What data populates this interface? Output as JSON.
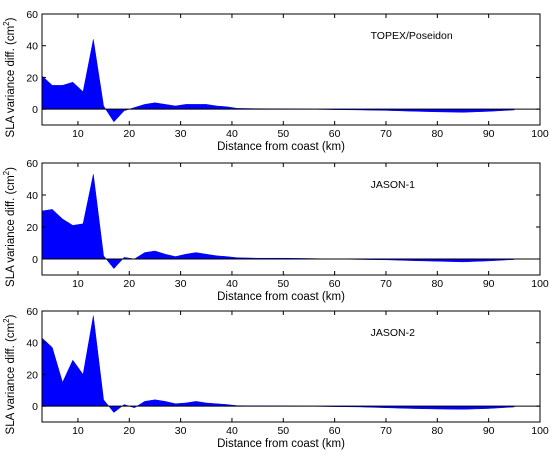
{
  "figure": {
    "fill_color": "#0000ff",
    "ylabel_base": "SLA variance diff. (cm",
    "ylabel_sup": "2",
    "ylabel_tail": ")"
  },
  "chart_data": [
    {
      "type": "area",
      "title": "TOPEX/Poseidon",
      "xlabel": "Distance from coast (km)",
      "ylabel": "SLA variance diff. (cm²)",
      "xlim": [
        3,
        100
      ],
      "ylim": [
        -10,
        60
      ],
      "xticks": [
        10,
        20,
        30,
        40,
        50,
        60,
        70,
        80,
        90,
        100
      ],
      "yticks": [
        0,
        20,
        40,
        60
      ],
      "grid": false,
      "x": [
        3,
        5,
        7,
        9,
        11,
        13,
        15,
        17,
        19,
        21,
        23,
        25,
        27,
        29,
        31,
        33,
        35,
        37,
        39,
        41,
        45,
        50,
        55,
        60,
        65,
        70,
        75,
        80,
        85,
        90,
        95
      ],
      "y": [
        21,
        15,
        15,
        17,
        11,
        44,
        2,
        -8,
        -1,
        1,
        3,
        4,
        3,
        2,
        3,
        3,
        3,
        2,
        1.5,
        0.5,
        0.3,
        0.2,
        0,
        -0.3,
        -0.5,
        -0.8,
        -1.3,
        -1.7,
        -2,
        -1.4,
        -0.5
      ]
    },
    {
      "type": "area",
      "title": "JASON-1",
      "xlabel": "Distance from coast (km)",
      "ylabel": "SLA variance diff. (cm²)",
      "xlim": [
        3,
        100
      ],
      "ylim": [
        -10,
        60
      ],
      "xticks": [
        10,
        20,
        30,
        40,
        50,
        60,
        70,
        80,
        90,
        100
      ],
      "yticks": [
        0,
        20,
        40,
        60
      ],
      "grid": false,
      "x": [
        3,
        5,
        7,
        9,
        11,
        13,
        15,
        17,
        19,
        21,
        23,
        25,
        27,
        29,
        31,
        33,
        35,
        37,
        39,
        41,
        45,
        50,
        55,
        60,
        65,
        70,
        75,
        80,
        85,
        90,
        95
      ],
      "y": [
        30,
        31,
        25,
        21,
        22,
        53,
        2,
        -6,
        1,
        0,
        4,
        5,
        3,
        1.5,
        3,
        4,
        3,
        2,
        1.5,
        0.8,
        0.5,
        0.5,
        0.3,
        0,
        -0.3,
        -0.5,
        -1,
        -1.4,
        -1.8,
        -1.2,
        -0.3
      ]
    },
    {
      "type": "area",
      "title": "JASON-2",
      "xlabel": "Distance from coast (km)",
      "ylabel": "SLA variance diff. (cm²)",
      "xlim": [
        3,
        100
      ],
      "ylim": [
        -10,
        60
      ],
      "xticks": [
        10,
        20,
        30,
        40,
        50,
        60,
        70,
        80,
        90,
        100
      ],
      "yticks": [
        0,
        20,
        40,
        60
      ],
      "grid": false,
      "x": [
        3,
        5,
        7,
        9,
        11,
        13,
        15,
        17,
        19,
        21,
        23,
        25,
        27,
        29,
        31,
        33,
        35,
        37,
        39,
        41,
        45,
        50,
        55,
        60,
        65,
        70,
        75,
        80,
        85,
        90,
        95
      ],
      "y": [
        43,
        37,
        15,
        29,
        20,
        57,
        4,
        -4,
        1,
        -1,
        3,
        4,
        3,
        1.5,
        2,
        3,
        2,
        1.5,
        1,
        0.3,
        0.2,
        0.1,
        0,
        -0.3,
        -0.5,
        -1,
        -1.5,
        -1.8,
        -2,
        -1.5,
        -0.5
      ]
    }
  ]
}
